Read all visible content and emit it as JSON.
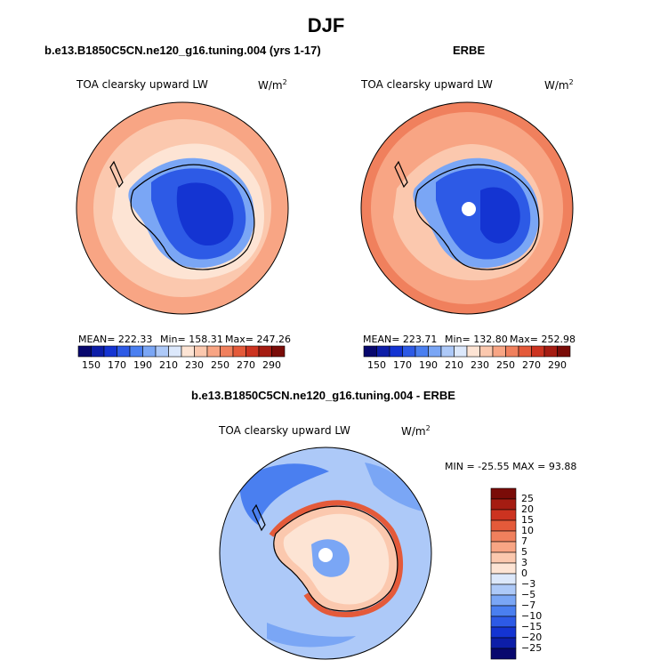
{
  "figure": {
    "title": "DJF"
  },
  "chart_data": [
    {
      "type": "heatmap",
      "projection": "polar stereographic (south)",
      "title": "b.e13.B1850C5CN.ne120_g16.tuning.004 (yrs 1-17)",
      "variable": "TOA clearsky upward LW",
      "units": "W/m",
      "units_power": "2",
      "stats": {
        "mean": "MEAN= 222.33",
        "min": "Min= 158.31",
        "max": "Max= 247.26"
      },
      "colorbar": {
        "orientation": "horizontal",
        "ticks": [
          "150",
          "170",
          "190",
          "210",
          "230",
          "250",
          "270",
          "290"
        ],
        "colors": [
          "#08086e",
          "#0d1ea8",
          "#1434d2",
          "#2d5ae6",
          "#4a7ff0",
          "#7aa6f5",
          "#adc9f8",
          "#dce8fb",
          "#fde4d4",
          "#fbc8ae",
          "#f8a584",
          "#f0805d",
          "#e45a3a",
          "#cc3320",
          "#a51c12",
          "#7a0c08"
        ]
      },
      "field_summary": {
        "ocean": "~240-250",
        "antarctic_interior": "~160-190",
        "coast": "~210-230"
      }
    },
    {
      "type": "heatmap",
      "projection": "polar stereographic (south)",
      "title": "ERBE",
      "variable": "TOA clearsky upward LW",
      "units": "W/m",
      "units_power": "2",
      "stats": {
        "mean": "MEAN= 223.71",
        "min": "Min= 132.80",
        "max": "Max= 252.98"
      },
      "colorbar": {
        "orientation": "horizontal",
        "ticks": [
          "150",
          "170",
          "190",
          "210",
          "230",
          "250",
          "270",
          "290"
        ],
        "colors": [
          "#08086e",
          "#0d1ea8",
          "#1434d2",
          "#2d5ae6",
          "#4a7ff0",
          "#7aa6f5",
          "#adc9f8",
          "#dce8fb",
          "#fde4d4",
          "#fbc8ae",
          "#f8a584",
          "#f0805d",
          "#e45a3a",
          "#cc3320",
          "#a51c12",
          "#7a0c08"
        ]
      },
      "field_summary": {
        "ocean": "~240-255",
        "antarctic_interior": "~150-190",
        "pole": "missing"
      }
    },
    {
      "type": "heatmap",
      "projection": "polar stereographic (south)",
      "title": "b.e13.B1850C5CN.ne120_g16.tuning.004 - ERBE",
      "variable": "TOA clearsky upward LW",
      "units": "W/m",
      "units_power": "2",
      "stats": {
        "range": "MIN = -25.55  MAX =  93.88"
      },
      "colorbar": {
        "orientation": "vertical",
        "ticks": [
          "25",
          "20",
          "15",
          "10",
          "7",
          "5",
          "3",
          "0",
          "−3",
          "−5",
          "−7",
          "−10",
          "−15",
          "−20",
          "−25"
        ],
        "colors": [
          "#7a0c08",
          "#a51c12",
          "#cc3320",
          "#e45a3a",
          "#f0805d",
          "#f8a584",
          "#fbc8ae",
          "#fde4d4",
          "#dce8fb",
          "#adc9f8",
          "#7aa6f5",
          "#4a7ff0",
          "#2d5ae6",
          "#1434d2",
          "#0d1ea8",
          "#08086e"
        ]
      },
      "field_summary": {
        "ocean": "~-5 to 0",
        "antarctic_coast": "~10-25",
        "interior": "~0-5",
        "pole": "missing"
      }
    }
  ]
}
